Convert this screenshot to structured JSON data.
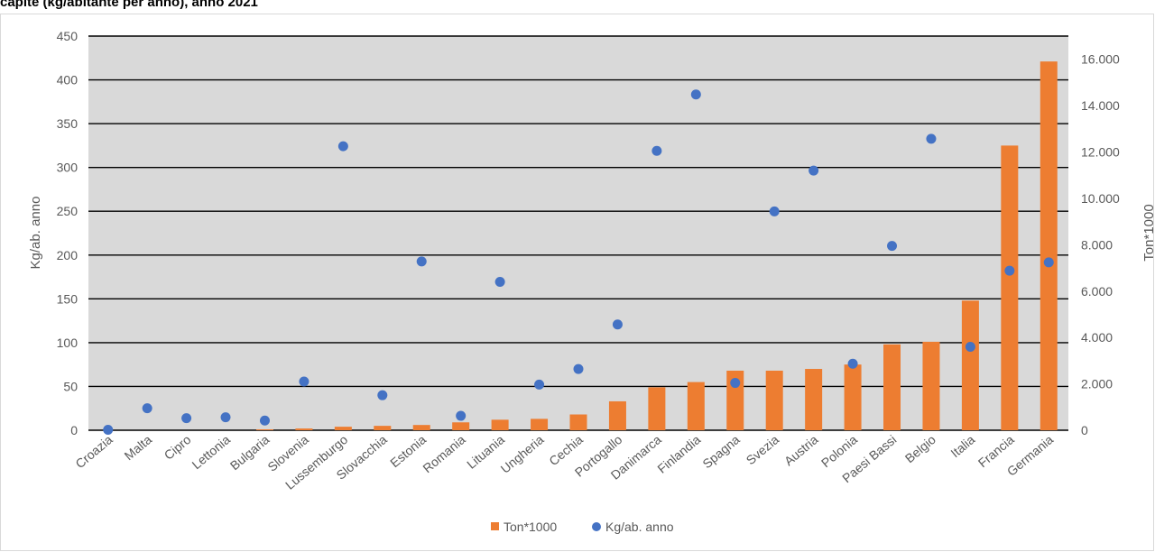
{
  "header": {
    "title": "capite (kg/abitante per anno), anno 2021"
  },
  "chart_data": {
    "type": "bar",
    "categories": [
      "Croazia",
      "Malta",
      "Cipro",
      "Lettonia",
      "Bulgaria",
      "Slovenia",
      "Lussemburgo",
      "Slovacchia",
      "Estonia",
      "Romania",
      "Lituania",
      "Ungheria",
      "Cechia",
      "Portogallo",
      "Danimarca",
      "Finlandia",
      "Spagna",
      "Svezia",
      "Austria",
      "Polonia",
      "Paesi Bassi",
      "Belgio",
      "Italia",
      "Francia",
      "Germania"
    ],
    "ylabel_left": "Kg/ab. anno",
    "ylabel_right": "Ton*1000",
    "y_left": {
      "min": 0,
      "max": 450,
      "step": 50,
      "ticks": [
        "0",
        "50",
        "100",
        "150",
        "200",
        "250",
        "300",
        "350",
        "400",
        "450"
      ]
    },
    "y_right": {
      "min": 0,
      "max": 17000,
      "step": 2000,
      "ticks": [
        "0",
        "2.000",
        "4.000",
        "6.000",
        "8.000",
        "10.000",
        "12.000",
        "14.000",
        "16.000"
      ]
    },
    "grid": true,
    "legend_position": "bottom",
    "series": [
      {
        "name": "Ton*1000",
        "kind": "bar",
        "axis": "left",
        "color": "#ed7d31",
        "values": [
          0,
          0,
          0,
          0,
          1,
          2,
          4,
          5,
          6,
          9,
          12,
          13,
          18,
          33,
          49,
          55,
          68,
          68,
          70,
          75,
          98,
          101,
          148,
          325,
          421
        ]
      },
      {
        "name": "Kg/ab. anno",
        "kind": "scatter",
        "axis": "right",
        "color": "#4472c4",
        "values": [
          20,
          950,
          520,
          560,
          420,
          2100,
          12250,
          1510,
          7280,
          620,
          6400,
          1970,
          2640,
          4560,
          12050,
          14480,
          2040,
          9440,
          11200,
          2870,
          7950,
          12570,
          3600,
          6880,
          7240
        ]
      }
    ]
  }
}
